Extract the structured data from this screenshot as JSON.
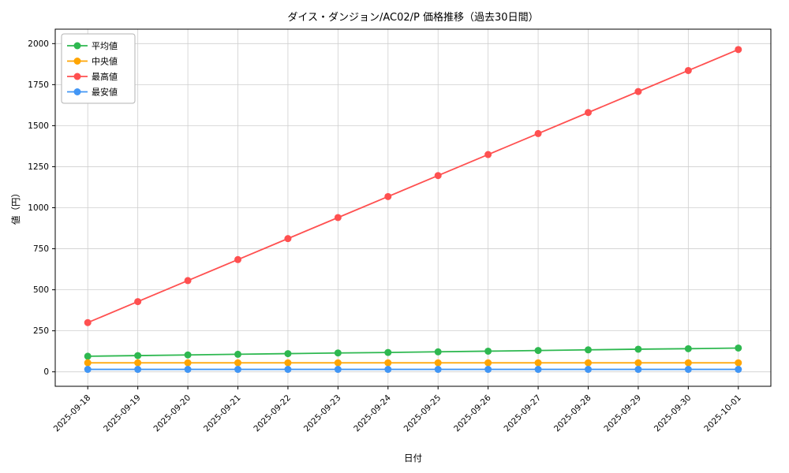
{
  "chart_data": {
    "type": "line",
    "title": "ダイス・ダンジョン/AC02/P 価格推移（過去30日間）",
    "xlabel": "日付",
    "ylabel": "値（円）",
    "categories": [
      "2025-09-18",
      "2025-09-19",
      "2025-09-20",
      "2025-09-21",
      "2025-09-22",
      "2025-09-23",
      "2025-09-24",
      "2025-09-25",
      "2025-09-26",
      "2025-09-27",
      "2025-09-28",
      "2025-09-29",
      "2025-09-30",
      "2025-10-01"
    ],
    "ylim": [
      0,
      2000
    ],
    "yticks": [
      0,
      250,
      500,
      750,
      1000,
      1250,
      1500,
      1750,
      2000
    ],
    "grid": true,
    "legend_position": "upper-left",
    "series": [
      {
        "name": "平均値",
        "color": "#2eb850",
        "values": [
          95,
          99,
          103,
          107,
          111,
          115,
          118,
          122,
          126,
          130,
          134,
          138,
          141,
          145
        ]
      },
      {
        "name": "中央値",
        "color": "#ffa502",
        "values": [
          55,
          55,
          55,
          55,
          55,
          55,
          55,
          55,
          55,
          55,
          55,
          55,
          55,
          55
        ]
      },
      {
        "name": "最高値",
        "color": "#ff5050",
        "values": [
          300,
          428,
          556,
          684,
          812,
          940,
          1068,
          1196,
          1324,
          1452,
          1580,
          1708,
          1836,
          1964
        ]
      },
      {
        "name": "最安値",
        "color": "#4296f5",
        "values": [
          15,
          15,
          15,
          15,
          15,
          15,
          15,
          15,
          15,
          15,
          15,
          15,
          15,
          15
        ]
      }
    ]
  }
}
